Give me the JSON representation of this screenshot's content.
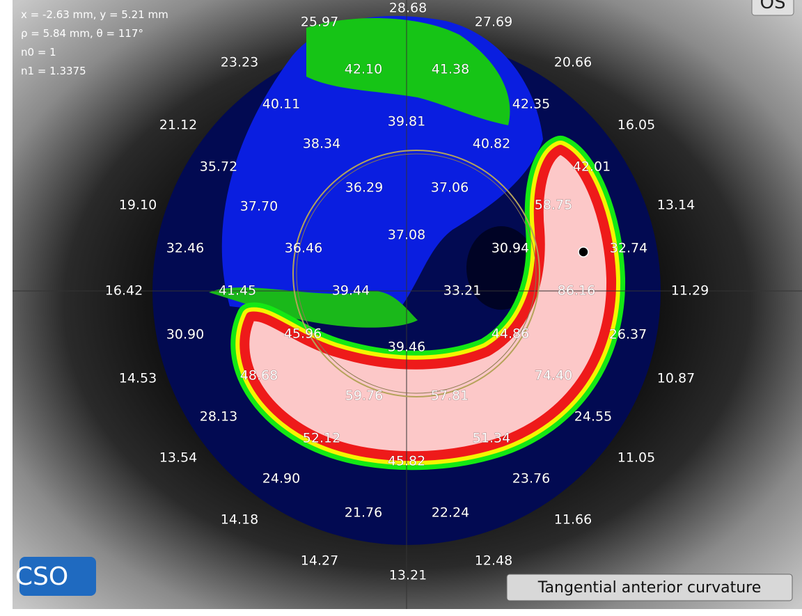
{
  "info": {
    "lines": [
      "x = -2.63 mm, y = 5.21 mm",
      "ρ = 5.84 mm, θ = 117°",
      "n0 = 1",
      "n1 = 1.3375"
    ]
  },
  "eye": "OS",
  "map": {
    "labels": [
      "28.68",
      "25.97",
      "27.69",
      "23.23",
      "42.10",
      "41.38",
      "20.66",
      "40.11",
      "42.35",
      "21.12",
      "39.81",
      "16.05",
      "38.34",
      "40.82",
      "35.72",
      "42.01",
      "36.29",
      "37.06",
      "19.10",
      "37.70",
      "58.75",
      "13.14",
      "37.08",
      "32.46",
      "36.46",
      "30.94",
      "32.74",
      "16.42",
      "41.45",
      "39.44",
      "33.21",
      "86.16",
      "11.29",
      "30.90",
      "45.96",
      "44.86",
      "26.37",
      "39.46",
      "14.53",
      "48.68",
      "74.40",
      "10.87",
      "59.76",
      "57.81",
      "28.13",
      "24.55",
      "52.12",
      "51.34",
      "13.54",
      "45.82",
      "11.05",
      "24.90",
      "23.76",
      "21.76",
      "22.24",
      "14.18",
      "11.66",
      "14.27",
      "12.48",
      "13.21"
    ]
  },
  "logo": "CSO",
  "mode": "Tangential anterior curvature"
}
